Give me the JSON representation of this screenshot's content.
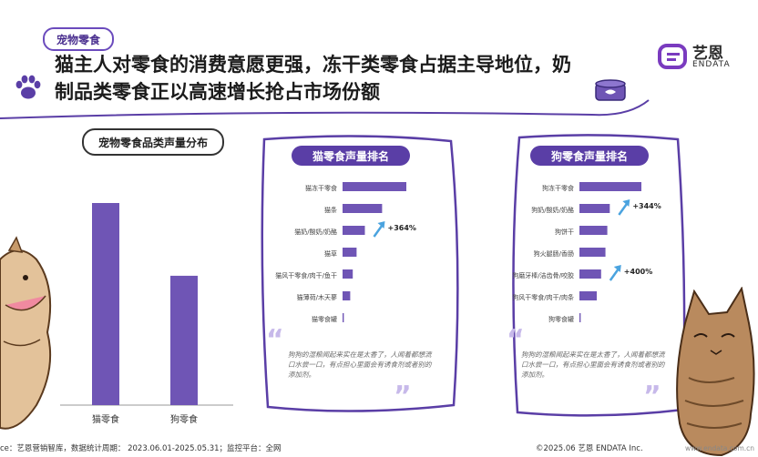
{
  "header": {
    "tag": "宠物零食",
    "headline_line1": "猫主人对零食的消费意愿更强，冻干类零食占据主导地位，奶",
    "headline_line2": "制品类零食正以高速增长抢占市场份额"
  },
  "brand": {
    "name": "艺恩",
    "sub": "ENDATA"
  },
  "colors": {
    "accent": "#5a3ea6",
    "bar": "#6f55b5",
    "arrow": "#4aa3df"
  },
  "left_chart": {
    "title": "宠物零食品类声量分布"
  },
  "cat_panel": {
    "title": "猫零食声量排名",
    "growth_label": "+364%",
    "quote": "狗狗的湿粮闻起来实在是太香了，人闻着都想流口水尝一口，有点担心里面会有诱食剂或者别的添加剂。"
  },
  "dog_panel": {
    "title": "狗零食声量排名",
    "growth_label_1": "+344%",
    "growth_label_2": "+400%",
    "quote": "狗狗的湿粮闻起来实在是太香了，人闻着都想流口水尝一口，有点担心里面会有诱食剂或者别的添加剂。"
  },
  "footer": {
    "source": "ce：艺恩营销智库，数据统计周期： 2023.06.01-2025.05.31；监控平台：全网",
    "copyright": "©2025.06 艺恩 ENDATA Inc.",
    "watermark": "www.endata.com.cn"
  },
  "chart_data": [
    {
      "type": "bar",
      "title": "宠物零食品类声量分布",
      "categories": [
        "猫零食",
        "狗零食"
      ],
      "values": [
        100,
        64
      ]
    },
    {
      "type": "bar",
      "orientation": "horizontal",
      "title": "猫零食声量排名",
      "categories": [
        "猫冻干零食",
        "猫条",
        "猫奶/酸奶/奶酪",
        "猫草",
        "猫风干零食/肉干/鱼干",
        "猫薄荷/木天蓼",
        "猫零食罐"
      ],
      "values": [
        100,
        62,
        35,
        22,
        16,
        12,
        2
      ],
      "annotations": [
        {
          "category": "猫奶/酸奶/奶酪",
          "text": "+364%"
        }
      ]
    },
    {
      "type": "bar",
      "orientation": "horizontal",
      "title": "狗零食声量排名",
      "categories": [
        "狗冻干零食",
        "狗奶/酸奶/奶酪",
        "狗饼干",
        "狗火腿肠/香肠",
        "狗磨牙棒/洁齿骨/咬胶",
        "狗风干零食/肉干/肉条",
        "狗零食罐"
      ],
      "values": [
        100,
        49,
        45,
        42,
        35,
        28,
        2
      ],
      "annotations": [
        {
          "category": "狗奶/酸奶/奶酪",
          "text": "+344%"
        },
        {
          "category": "狗磨牙棒/洁齿骨/咬胶",
          "text": "+400%"
        }
      ]
    }
  ]
}
